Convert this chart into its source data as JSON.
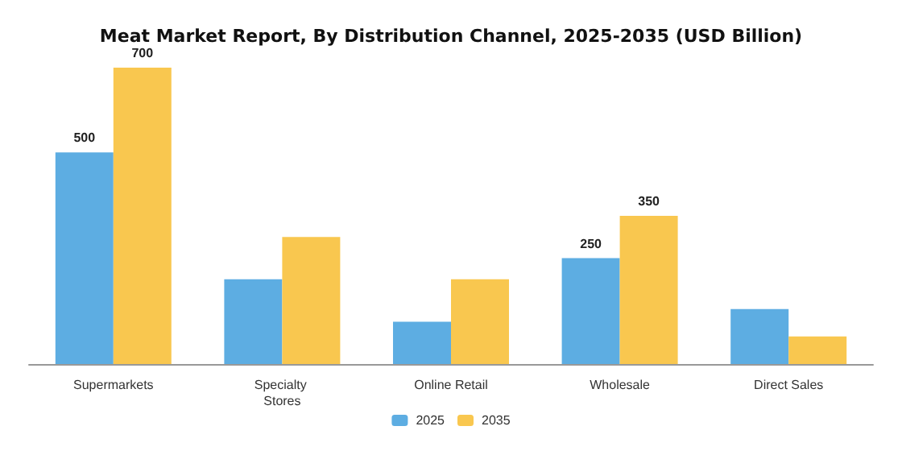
{
  "chart_data": {
    "type": "bar",
    "title": "Meat Market Report, By Distribution Channel, 2025-2035 (USD Billion)",
    "categories": [
      "Supermarkets",
      "Specialty Stores",
      "Online Retail",
      "Wholesale",
      "Direct Sales"
    ],
    "series": [
      {
        "name": "2025",
        "color": "#5dade2",
        "values": [
          500,
          200,
          100,
          250,
          130
        ],
        "value_labels": [
          "500",
          null,
          null,
          "250",
          null
        ]
      },
      {
        "name": "2035",
        "color": "#f9c74f",
        "values": [
          700,
          300,
          200,
          350,
          65
        ],
        "value_labels": [
          "700",
          null,
          null,
          "350",
          null
        ]
      }
    ],
    "legend": "bottom",
    "grid": false
  }
}
